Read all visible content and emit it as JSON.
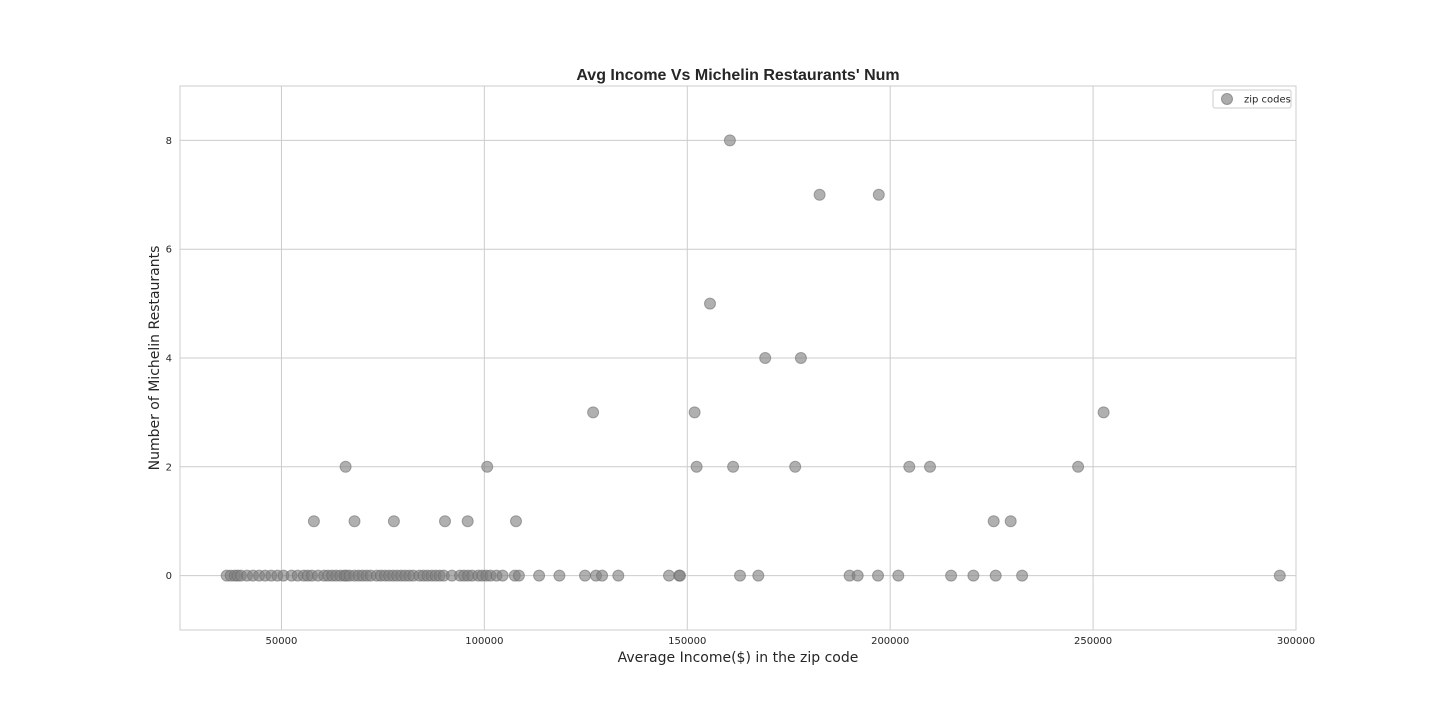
{
  "chart_data": {
    "type": "scatter",
    "title": "Avg Income Vs Michelin Restaurants' Num",
    "xlabel": "Average Income($) in the zip code",
    "ylabel": "Number of Michelin Restaurants",
    "xlim": [
      25000,
      300000
    ],
    "ylim": [
      -1,
      9
    ],
    "xticks": [
      50000,
      100000,
      150000,
      200000,
      250000,
      300000
    ],
    "yticks": [
      0,
      2,
      4,
      6,
      8
    ],
    "grid": true,
    "legend_position": "top-right",
    "series": [
      {
        "name": "zip codes",
        "color": "#808080",
        "points": [
          [
            36500,
            0
          ],
          [
            37500,
            0
          ],
          [
            38500,
            0
          ],
          [
            39200,
            0
          ],
          [
            40000,
            0
          ],
          [
            41500,
            0
          ],
          [
            43000,
            0
          ],
          [
            44500,
            0
          ],
          [
            46000,
            0
          ],
          [
            47500,
            0
          ],
          [
            49000,
            0
          ],
          [
            50500,
            0
          ],
          [
            52500,
            0
          ],
          [
            54000,
            0
          ],
          [
            55500,
            0
          ],
          [
            56500,
            0
          ],
          [
            57500,
            0
          ],
          [
            59000,
            0
          ],
          [
            60500,
            0
          ],
          [
            61500,
            0
          ],
          [
            62500,
            0
          ],
          [
            63500,
            0
          ],
          [
            64500,
            0
          ],
          [
            65500,
            0
          ],
          [
            66000,
            0
          ],
          [
            66800,
            0
          ],
          [
            68000,
            0
          ],
          [
            69000,
            0
          ],
          [
            70000,
            0
          ],
          [
            71000,
            0
          ],
          [
            72000,
            0
          ],
          [
            73500,
            0
          ],
          [
            74500,
            0
          ],
          [
            75500,
            0
          ],
          [
            76500,
            0
          ],
          [
            77500,
            0
          ],
          [
            78500,
            0
          ],
          [
            79500,
            0
          ],
          [
            80500,
            0
          ],
          [
            81500,
            0
          ],
          [
            82500,
            0
          ],
          [
            84000,
            0
          ],
          [
            85000,
            0
          ],
          [
            86000,
            0
          ],
          [
            87000,
            0
          ],
          [
            88000,
            0
          ],
          [
            89000,
            0
          ],
          [
            90000,
            0
          ],
          [
            92000,
            0
          ],
          [
            94000,
            0
          ],
          [
            95000,
            0
          ],
          [
            96000,
            0
          ],
          [
            97000,
            0
          ],
          [
            98500,
            0
          ],
          [
            99500,
            0
          ],
          [
            100500,
            0
          ],
          [
            101500,
            0
          ],
          [
            103000,
            0
          ],
          [
            104500,
            0
          ],
          [
            107500,
            0
          ],
          [
            108500,
            0
          ],
          [
            113500,
            0
          ],
          [
            118500,
            0
          ],
          [
            124800,
            0
          ],
          [
            127500,
            0
          ],
          [
            129000,
            0
          ],
          [
            133000,
            0
          ],
          [
            145500,
            0
          ],
          [
            148000,
            0
          ],
          [
            148200,
            0
          ],
          [
            163000,
            0
          ],
          [
            167500,
            0
          ],
          [
            190000,
            0
          ],
          [
            192000,
            0
          ],
          [
            197000,
            0
          ],
          [
            202000,
            0
          ],
          [
            215000,
            0
          ],
          [
            220500,
            0
          ],
          [
            226000,
            0
          ],
          [
            232500,
            0
          ],
          [
            296000,
            0
          ],
          [
            58000,
            1
          ],
          [
            68000,
            1
          ],
          [
            77700,
            1
          ],
          [
            90300,
            1
          ],
          [
            95900,
            1
          ],
          [
            107800,
            1
          ],
          [
            225500,
            1
          ],
          [
            229700,
            1
          ],
          [
            65800,
            2
          ],
          [
            100700,
            2
          ],
          [
            152300,
            2
          ],
          [
            161300,
            2
          ],
          [
            176600,
            2
          ],
          [
            204700,
            2
          ],
          [
            209800,
            2
          ],
          [
            246300,
            2
          ],
          [
            126800,
            3
          ],
          [
            151800,
            3
          ],
          [
            252600,
            3
          ],
          [
            169200,
            4
          ],
          [
            178000,
            4
          ],
          [
            155600,
            5
          ],
          [
            182600,
            7
          ],
          [
            197200,
            7
          ],
          [
            160500,
            8
          ]
        ]
      }
    ]
  }
}
